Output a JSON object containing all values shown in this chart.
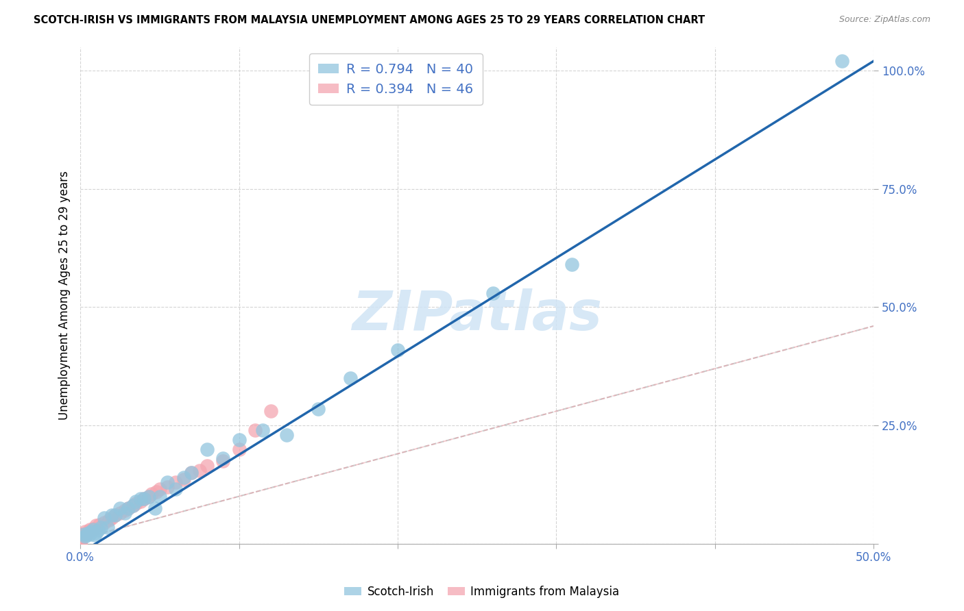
{
  "title": "SCOTCH-IRISH VS IMMIGRANTS FROM MALAYSIA UNEMPLOYMENT AMONG AGES 25 TO 29 YEARS CORRELATION CHART",
  "source": "Source: ZipAtlas.com",
  "ylabel": "Unemployment Among Ages 25 to 29 years",
  "xlim": [
    0,
    0.5
  ],
  "ylim": [
    0,
    1.05
  ],
  "scotch_irish_R": 0.794,
  "scotch_irish_N": 40,
  "malaysia_R": 0.394,
  "malaysia_N": 46,
  "scotch_irish_color": "#92c5de",
  "malaysia_color": "#f4a6b0",
  "regression_line_color": "#2166ac",
  "malaysia_regression_color": "#e8a0a8",
  "watermark_color": "#d0e4f5",
  "scotch_irish_x": [
    0.002,
    0.003,
    0.004,
    0.005,
    0.006,
    0.007,
    0.008,
    0.009,
    0.01,
    0.011,
    0.013,
    0.015,
    0.017,
    0.02,
    0.022,
    0.025,
    0.028,
    0.03,
    0.033,
    0.035,
    0.038,
    0.04,
    0.043,
    0.047,
    0.05,
    0.055,
    0.06,
    0.065,
    0.07,
    0.08,
    0.09,
    0.1,
    0.115,
    0.13,
    0.15,
    0.17,
    0.2,
    0.26,
    0.31,
    0.48
  ],
  "scotch_irish_y": [
    0.02,
    0.015,
    0.018,
    0.022,
    0.02,
    0.025,
    0.03,
    0.018,
    0.022,
    0.028,
    0.035,
    0.055,
    0.035,
    0.06,
    0.06,
    0.075,
    0.065,
    0.075,
    0.08,
    0.09,
    0.095,
    0.095,
    0.1,
    0.075,
    0.1,
    0.13,
    0.115,
    0.14,
    0.15,
    0.2,
    0.18,
    0.22,
    0.24,
    0.23,
    0.285,
    0.35,
    0.41,
    0.53,
    0.59,
    1.02
  ],
  "malaysia_x": [
    0.0,
    0.0,
    0.0,
    0.0,
    0.0,
    0.0,
    0.0,
    0.0,
    0.0,
    0.0,
    0.0,
    0.001,
    0.002,
    0.003,
    0.004,
    0.005,
    0.006,
    0.007,
    0.008,
    0.01,
    0.012,
    0.015,
    0.018,
    0.02,
    0.022,
    0.025,
    0.028,
    0.03,
    0.033,
    0.035,
    0.038,
    0.04,
    0.043,
    0.045,
    0.048,
    0.05,
    0.055,
    0.06,
    0.065,
    0.07,
    0.075,
    0.08,
    0.09,
    0.1,
    0.11,
    0.12
  ],
  "malaysia_y": [
    0.0,
    0.0,
    0.0,
    0.003,
    0.005,
    0.008,
    0.01,
    0.012,
    0.015,
    0.018,
    0.02,
    0.015,
    0.02,
    0.025,
    0.02,
    0.025,
    0.03,
    0.028,
    0.032,
    0.038,
    0.04,
    0.045,
    0.05,
    0.055,
    0.06,
    0.065,
    0.07,
    0.075,
    0.08,
    0.085,
    0.09,
    0.095,
    0.1,
    0.105,
    0.11,
    0.115,
    0.12,
    0.13,
    0.135,
    0.15,
    0.155,
    0.165,
    0.175,
    0.2,
    0.24,
    0.28
  ],
  "si_regress_x0": 0.0,
  "si_regress_y0": -0.02,
  "si_regress_x1": 0.5,
  "si_regress_y1": 1.02,
  "mal_regress_x0": 0.0,
  "mal_regress_y0": 0.01,
  "mal_regress_x1": 0.5,
  "mal_regress_y1": 0.46
}
